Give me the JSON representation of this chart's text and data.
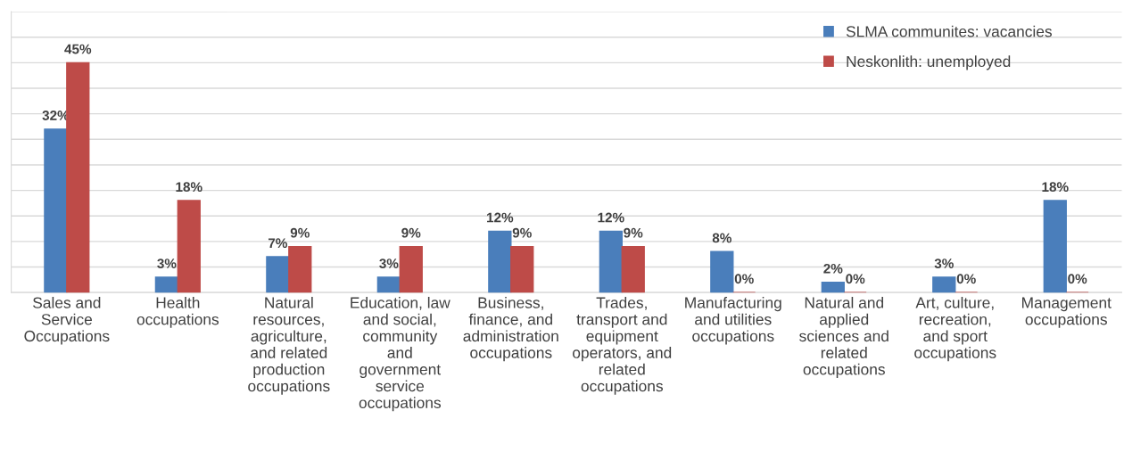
{
  "chart_data": {
    "type": "bar",
    "categories": [
      "Sales and\nService\nOccupations",
      "Health\noccupations",
      "Natural\nresources,\nagriculture,\nand related\nproduction\noccupations",
      "Education, law\nand social,\ncommunity\nand\ngovernment\nservice\noccupations",
      "Business,\nfinance, and\nadministration\noccupations",
      "Trades,\ntransport and\nequipment\noperators, and\nrelated\noccupations",
      "Manufacturing\nand utilities\noccupations",
      "Natural and\napplied\nsciences and\nrelated\noccupations",
      "Art, culture,\nrecreation,\nand sport\noccupations",
      "Management\noccupations"
    ],
    "series": [
      {
        "name": "SLMA communites: vacancies",
        "color": "#4a7ebb",
        "values": [
          32,
          3,
          7,
          3,
          12,
          12,
          8,
          2,
          3,
          18
        ],
        "value_labels": [
          "32%",
          "3%",
          "7%",
          "3%",
          "12%",
          "12%",
          "8%",
          "2%",
          "3%",
          "18%"
        ]
      },
      {
        "name": "Neskonlith: unemployed",
        "color": "#be4b48",
        "values": [
          45,
          18,
          9,
          9,
          9,
          9,
          0,
          0,
          0,
          0
        ],
        "value_labels": [
          "45%",
          "18%",
          "9%",
          "9%",
          "9%",
          "9%",
          "0%",
          "0%",
          "0%",
          "0%"
        ]
      }
    ],
    "ylim": [
      0,
      55
    ],
    "yticks": [
      {
        "value": 0,
        "label": null
      },
      {
        "value": 5,
        "label": null
      },
      {
        "value": 10,
        "label": null
      },
      {
        "value": 15,
        "label": null
      },
      {
        "value": 20,
        "label": null
      },
      {
        "value": 25,
        "label": null
      },
      {
        "value": 30,
        "label": null
      },
      {
        "value": 35,
        "label": null
      },
      {
        "value": 40,
        "label": null
      },
      {
        "value": 45,
        "label": null
      },
      {
        "value": 50,
        "label": null
      },
      {
        "value": 55,
        "label": null
      }
    ],
    "tick_labels": "x",
    "grid": "y",
    "legend": "top right"
  }
}
